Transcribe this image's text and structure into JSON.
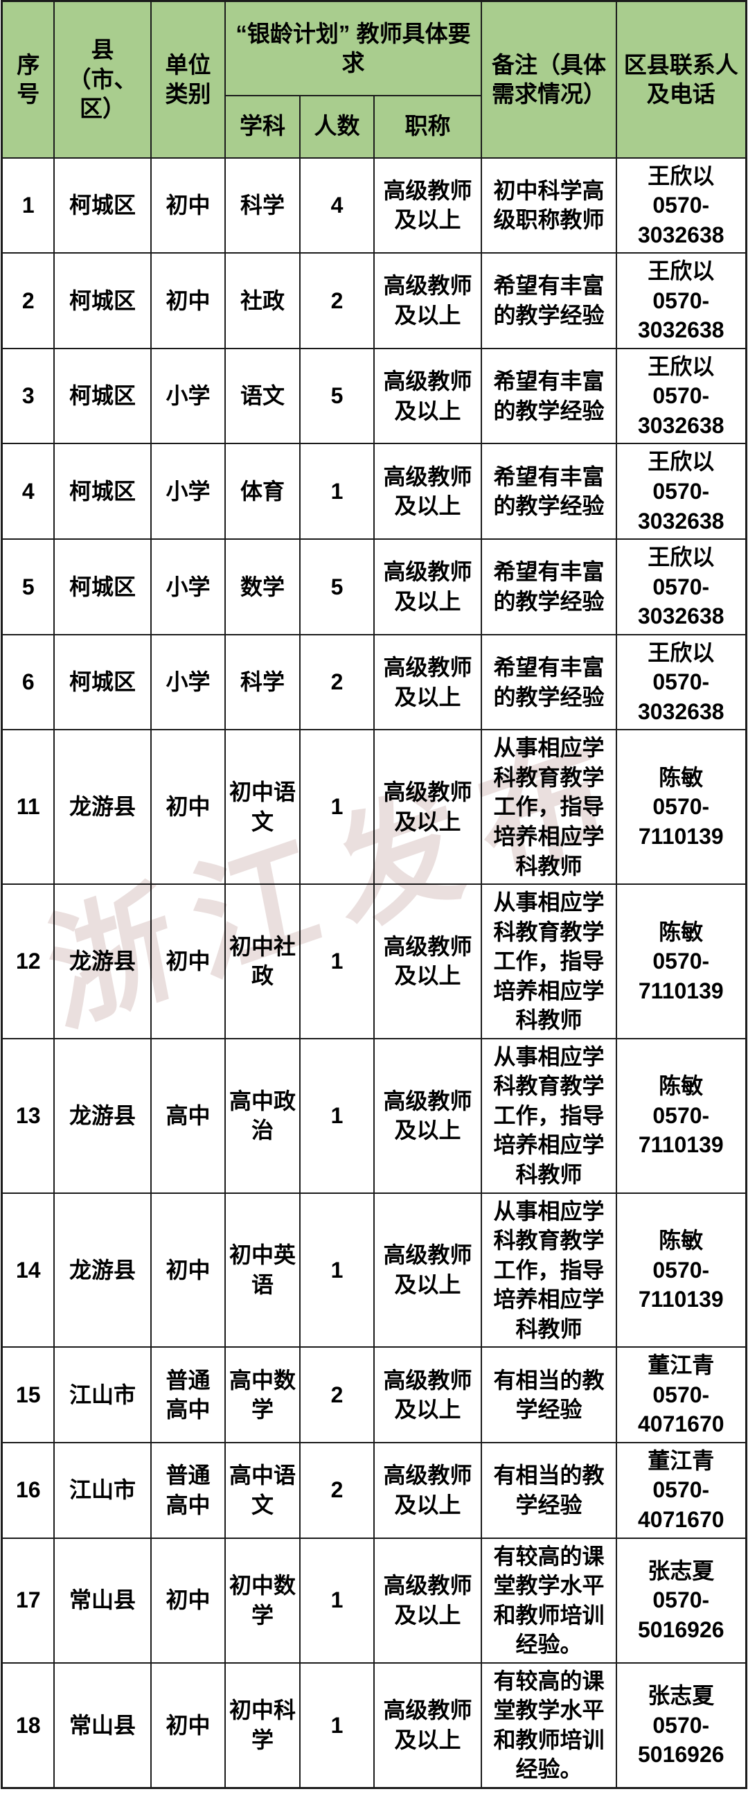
{
  "watermark": "浙江发布",
  "colors": {
    "header_bg": "#a9cd8e",
    "border": "#1b1b1b",
    "watermark": "#d8c4c2"
  },
  "header": {
    "seq": "序号",
    "county": "县（市、区）",
    "unit_type": "单位类别",
    "requirements_group": "“银龄计划” 教师具体要求",
    "subject": "学科",
    "count": "人数",
    "title": "职称",
    "remark": "备注（具体需求情况）",
    "contact": "区县联系人及电话"
  },
  "rows": [
    {
      "seq": "1",
      "county": "柯城区",
      "unit_type": "初中",
      "subject": "科学",
      "count": "4",
      "title": "高级教师及以上",
      "remark": "初中科学高级职称教师",
      "contact_name": "王欣以",
      "phone": "0570-3032638"
    },
    {
      "seq": "2",
      "county": "柯城区",
      "unit_type": "初中",
      "subject": "社政",
      "count": "2",
      "title": "高级教师及以上",
      "remark": "希望有丰富的教学经验",
      "contact_name": "王欣以",
      "phone": "0570-3032638"
    },
    {
      "seq": "3",
      "county": "柯城区",
      "unit_type": "小学",
      "subject": "语文",
      "count": "5",
      "title": "高级教师及以上",
      "remark": "希望有丰富的教学经验",
      "contact_name": "王欣以",
      "phone": "0570-3032638"
    },
    {
      "seq": "4",
      "county": "柯城区",
      "unit_type": "小学",
      "subject": "体育",
      "count": "1",
      "title": "高级教师及以上",
      "remark": "希望有丰富的教学经验",
      "contact_name": "王欣以",
      "phone": "0570-3032638"
    },
    {
      "seq": "5",
      "county": "柯城区",
      "unit_type": "小学",
      "subject": "数学",
      "count": "5",
      "title": "高级教师及以上",
      "remark": "希望有丰富的教学经验",
      "contact_name": "王欣以",
      "phone": "0570-3032638"
    },
    {
      "seq": "6",
      "county": "柯城区",
      "unit_type": "小学",
      "subject": "科学",
      "count": "2",
      "title": "高级教师及以上",
      "remark": "希望有丰富的教学经验",
      "contact_name": "王欣以",
      "phone": "0570-3032638"
    },
    {
      "seq": "11",
      "county": "龙游县",
      "unit_type": "初中",
      "subject": "初中语文",
      "count": "1",
      "title": "高级教师及以上",
      "remark": "从事相应学科教育教学工作，指导培养相应学科教师",
      "contact_name": "陈敏",
      "phone": "0570-7110139"
    },
    {
      "seq": "12",
      "county": "龙游县",
      "unit_type": "初中",
      "subject": "初中社政",
      "count": "1",
      "title": "高级教师及以上",
      "remark": "从事相应学科教育教学工作，指导培养相应学科教师",
      "contact_name": "陈敏",
      "phone": "0570-7110139"
    },
    {
      "seq": "13",
      "county": "龙游县",
      "unit_type": "高中",
      "subject": "高中政治",
      "count": "1",
      "title": "高级教师及以上",
      "remark": "从事相应学科教育教学工作，指导培养相应学科教师",
      "contact_name": "陈敏",
      "phone": "0570-7110139"
    },
    {
      "seq": "14",
      "county": "龙游县",
      "unit_type": "初中",
      "subject": "初中英语",
      "count": "1",
      "title": "高级教师及以上",
      "remark": "从事相应学科教育教学工作，指导培养相应学科教师",
      "contact_name": "陈敏",
      "phone": "0570-7110139"
    },
    {
      "seq": "15",
      "county": "江山市",
      "unit_type": "普通高中",
      "subject": "高中数学",
      "count": "2",
      "title": "高级教师及以上",
      "remark": "有相当的教学经验",
      "contact_name": "董江青",
      "phone": "0570-4071670"
    },
    {
      "seq": "16",
      "county": "江山市",
      "unit_type": "普通高中",
      "subject": "高中语文",
      "count": "2",
      "title": "高级教师及以上",
      "remark": "有相当的教学经验",
      "contact_name": "董江青",
      "phone": "0570-4071670"
    },
    {
      "seq": "17",
      "county": "常山县",
      "unit_type": "初中",
      "subject": "初中数学",
      "count": "1",
      "title": "高级教师及以上",
      "remark": "有较高的课堂教学水平和教师培训经验。",
      "contact_name": "张志夏",
      "phone": "0570-5016926"
    },
    {
      "seq": "18",
      "county": "常山县",
      "unit_type": "初中",
      "subject": "初中科学",
      "count": "1",
      "title": "高级教师及以上",
      "remark": "有较高的课堂教学水平和教师培训经验。",
      "contact_name": "张志夏",
      "phone": "0570-5016926"
    }
  ]
}
